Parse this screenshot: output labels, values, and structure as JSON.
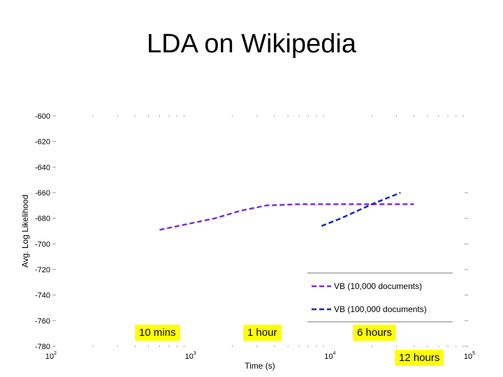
{
  "slide": {
    "title": "LDA on Wikipedia"
  },
  "callouts": {
    "c1": "10 mins",
    "c2": "1 hour",
    "c3": "6 hours",
    "c4": "12 hours"
  },
  "chart_data": {
    "type": "line",
    "title": "",
    "xlabel": "Time (s)",
    "ylabel": "Avg. Log Likelihood",
    "xscale": "log",
    "xlim": [
      100,
      100000
    ],
    "ylim": [
      -780,
      -600
    ],
    "x_ticks": [
      {
        "value": 100,
        "mantissa": "10",
        "exp": "2"
      },
      {
        "value": 1000,
        "mantissa": "10",
        "exp": "3"
      },
      {
        "value": 10000,
        "mantissa": "10",
        "exp": "4"
      },
      {
        "value": 100000,
        "mantissa": "10",
        "exp": "5"
      }
    ],
    "y_ticks": [
      -600,
      -620,
      -640,
      -660,
      -680,
      -700,
      -720,
      -740,
      -760,
      -780
    ],
    "grid": false,
    "legend_position": "bottom-right",
    "series": [
      {
        "name": "VB (10,000 documents)",
        "color": "#7b2fd6",
        "style": "dashed",
        "x": [
          600,
          1000,
          1500,
          2300,
          3500,
          6000,
          10000,
          20000,
          40000
        ],
        "y": [
          -689,
          -684,
          -680,
          -674,
          -670,
          -669,
          -669,
          -669,
          -669
        ]
      },
      {
        "name": "VB (100,000 documents)",
        "color": "#1522c8",
        "style": "dashed",
        "x": [
          8700,
          12000,
          20000,
          32000
        ],
        "y": [
          -686,
          -680,
          -669,
          -660
        ]
      }
    ]
  }
}
